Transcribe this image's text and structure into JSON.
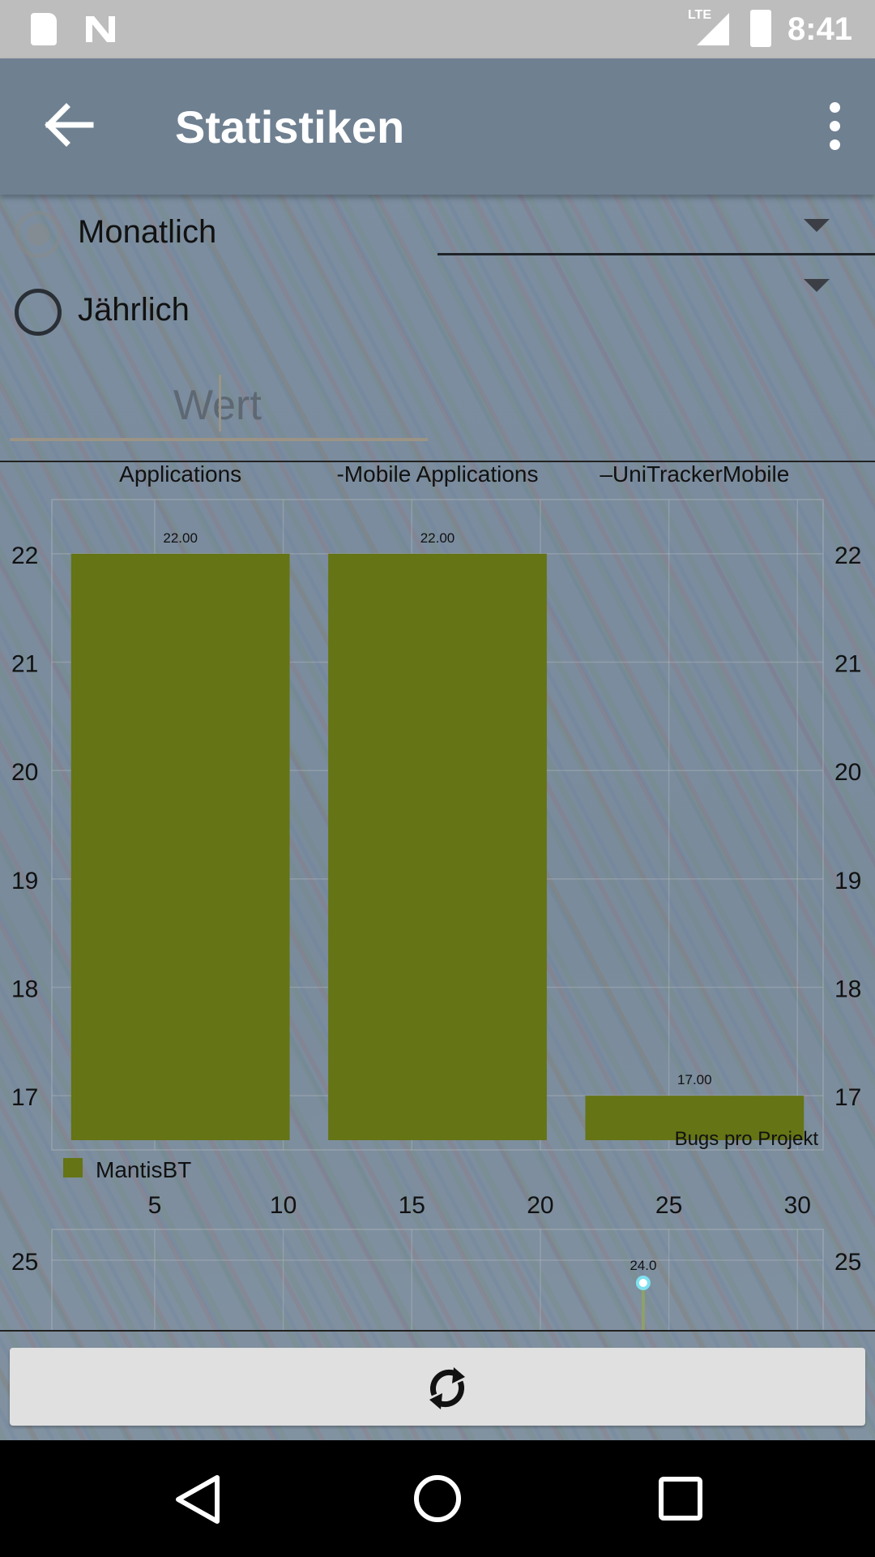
{
  "status_bar": {
    "time": "8:41",
    "network": "LTE"
  },
  "app_bar": {
    "title": "Statistiken"
  },
  "filters": {
    "radio_monthly": "Monatlich",
    "radio_yearly": "Jährlich",
    "value_placeholder": "Wert"
  },
  "icons": {
    "back": "arrow-back-icon",
    "menu": "more-vert-icon",
    "refresh": "refresh-icon"
  },
  "colors": {
    "bar": "#657414",
    "app_bar": "#6f8091",
    "line_marker": "#7fe0f0"
  },
  "chart_data": [
    {
      "type": "bar",
      "categories": [
        "Applications",
        "-Mobile Applications",
        "–UniTrackerMobile"
      ],
      "series": [
        {
          "name": "MantisBT",
          "values": [
            22.0,
            22.0,
            17.0
          ]
        }
      ],
      "data_labels": [
        "22.00",
        "22.00",
        "17.00"
      ],
      "description": "Bugs pro Projekt",
      "legend": "bottom-left",
      "ylim": [
        16.5,
        22.5
      ],
      "y_ticks": [
        17,
        18,
        19,
        20,
        21,
        22
      ],
      "x_ticks": [
        5,
        10,
        15,
        20,
        25,
        30
      ],
      "grid": true
    },
    {
      "type": "line",
      "x": [
        24
      ],
      "y": [
        24.0
      ],
      "data_labels": [
        "24.0"
      ],
      "y_ticks": [
        25
      ],
      "grid": true
    }
  ]
}
